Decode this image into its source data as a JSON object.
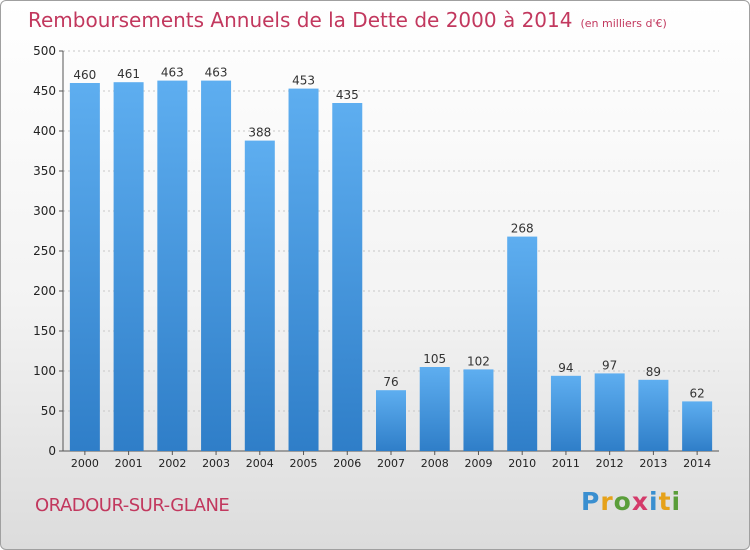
{
  "title": "Remboursements Annuels de la Dette de 2000 à 2014",
  "subtitle": "(en milliers d'€)",
  "commune": "ORADOUR-SUR-GLANE",
  "logo": {
    "text": "Proxiti",
    "colors": [
      "#3a8fd0",
      "#e6a21a",
      "#5a9e3a",
      "#d43a6a",
      "#3a8fd0",
      "#e6a21a",
      "#5a9e3a"
    ]
  },
  "colors": {
    "accent": "#c2385e",
    "bar_top": "#5eaef0",
    "bar_bottom": "#2f7ec8"
  },
  "chart_data": {
    "type": "bar",
    "categories": [
      "2000",
      "2001",
      "2002",
      "2003",
      "2004",
      "2005",
      "2006",
      "2007",
      "2008",
      "2009",
      "2010",
      "2011",
      "2012",
      "2013",
      "2014"
    ],
    "values": [
      460,
      461,
      463,
      463,
      388,
      453,
      435,
      76,
      105,
      102,
      268,
      94,
      97,
      89,
      62
    ],
    "ylim": [
      0,
      500
    ],
    "yticks": [
      0,
      50,
      100,
      150,
      200,
      250,
      300,
      350,
      400,
      450,
      500
    ],
    "grid": true,
    "xlabel": "",
    "ylabel": ""
  }
}
